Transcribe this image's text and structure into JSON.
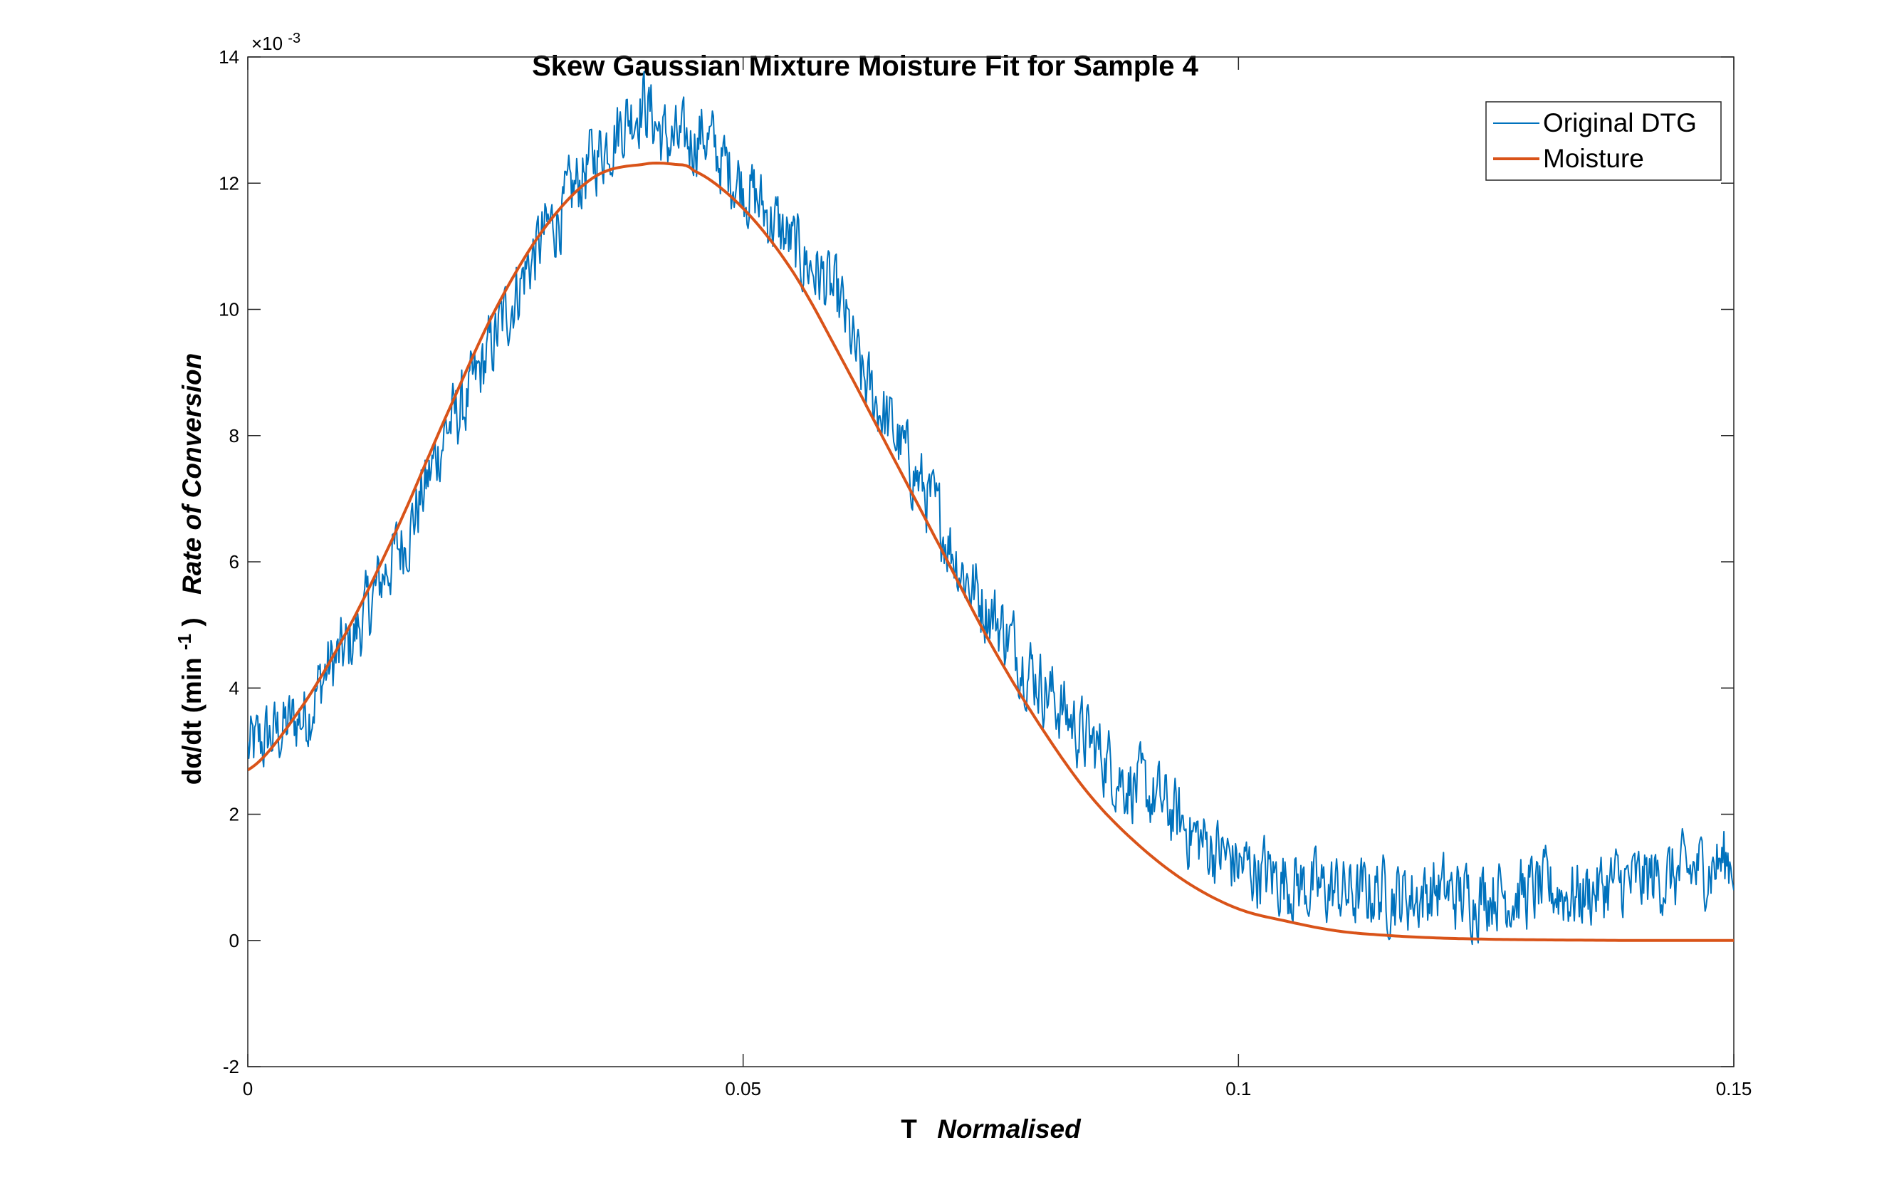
{
  "chart_data": {
    "type": "line",
    "title": "Skew Gaussian Mixture Moisture Fit for Sample 4",
    "xlabel": {
      "prefix": "T",
      "italic": "Normalised"
    },
    "ylabel": {
      "prefix": "dα/dt (min",
      "superscript": "-1",
      "suffix": ")",
      "italic": "Rate of Conversion"
    },
    "y_exponent": {
      "base": "×10",
      "power": "-3"
    },
    "xlim": [
      0,
      0.15
    ],
    "ylim": [
      -2,
      14
    ],
    "x_ticks": [
      0,
      0.05,
      0.1,
      0.15
    ],
    "x_tick_labels": [
      "0",
      "0.05",
      "0.1",
      "0.15"
    ],
    "y_ticks": [
      -2,
      0,
      2,
      4,
      6,
      8,
      10,
      12,
      14
    ],
    "y_tick_labels": [
      "-2",
      "0",
      "2",
      "4",
      "6",
      "8",
      "10",
      "12",
      "14"
    ],
    "grid": false,
    "legend_position": "top-right",
    "series": [
      {
        "name": "Original DTG",
        "color": "#0072BD",
        "x": [
          0,
          0.002,
          0.004,
          0.006,
          0.008,
          0.01,
          0.012,
          0.014,
          0.016,
          0.018,
          0.02,
          0.022,
          0.024,
          0.026,
          0.028,
          0.03,
          0.032,
          0.034,
          0.036,
          0.038,
          0.04,
          0.042,
          0.044,
          0.046,
          0.048,
          0.05,
          0.052,
          0.054,
          0.056,
          0.058,
          0.06,
          0.062,
          0.064,
          0.066,
          0.068,
          0.07,
          0.072,
          0.074,
          0.076,
          0.078,
          0.08,
          0.082,
          0.084,
          0.086,
          0.088,
          0.09,
          0.092,
          0.094,
          0.096,
          0.098,
          0.1,
          0.102,
          0.104,
          0.106,
          0.108,
          0.11,
          0.112,
          0.114,
          0.116,
          0.118,
          0.12,
          0.122,
          0.124,
          0.126,
          0.128,
          0.13,
          0.132,
          0.134,
          0.136,
          0.138,
          0.14,
          0.142,
          0.144,
          0.146,
          0.148,
          0.15
        ],
        "y": [
          3.0,
          3.2,
          3.4,
          3.6,
          4.3,
          4.6,
          5.2,
          5.9,
          6.4,
          7.2,
          8.1,
          8.5,
          9.2,
          9.9,
          10.6,
          11.2,
          11.6,
          12.2,
          12.6,
          13.0,
          13.3,
          12.7,
          12.6,
          12.8,
          12.3,
          12.0,
          11.6,
          11.2,
          10.8,
          10.5,
          10.0,
          8.9,
          8.4,
          7.8,
          7.2,
          6.6,
          5.9,
          5.4,
          5.0,
          4.5,
          4.1,
          3.7,
          3.3,
          3.0,
          2.6,
          2.4,
          2.2,
          1.9,
          1.6,
          1.4,
          1.2,
          1.1,
          1.0,
          0.9,
          0.8,
          0.8,
          0.7,
          0.8,
          0.7,
          0.7,
          0.8,
          0.7,
          0.7,
          0.8,
          0.7,
          0.8,
          0.8,
          0.7,
          0.8,
          0.9,
          0.9,
          1.0,
          1.0,
          1.1,
          1.2,
          1.3
        ],
        "noise_amplitude": 0.9
      },
      {
        "name": "Moisture",
        "color": "#D95319",
        "x": [
          0,
          0.005,
          0.01,
          0.015,
          0.02,
          0.025,
          0.03,
          0.035,
          0.04,
          0.043,
          0.045,
          0.05,
          0.055,
          0.06,
          0.065,
          0.07,
          0.075,
          0.08,
          0.085,
          0.09,
          0.095,
          0.1,
          0.105,
          0.11,
          0.115,
          0.12,
          0.125,
          0.13,
          0.14,
          0.15
        ],
        "y": [
          2.7,
          3.6,
          4.9,
          6.5,
          8.3,
          10.0,
          11.3,
          12.1,
          12.3,
          12.3,
          12.2,
          11.6,
          10.6,
          9.2,
          7.7,
          6.2,
          4.7,
          3.4,
          2.3,
          1.5,
          0.9,
          0.5,
          0.3,
          0.15,
          0.08,
          0.04,
          0.02,
          0.01,
          0.0,
          0.0
        ]
      }
    ]
  }
}
